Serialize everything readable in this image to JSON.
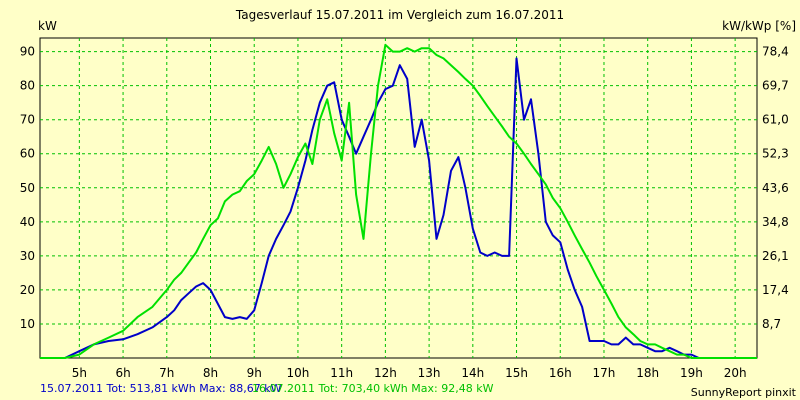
{
  "chart_data": {
    "type": "line",
    "title": "Tagesverlauf 15.07.2011 im Vergleich zum 16.07.2011",
    "ylabel_left": "kW",
    "ylabel_right": "kW/kWp [%]",
    "x_ticks": [
      "5h",
      "6h",
      "7h",
      "8h",
      "9h",
      "10h",
      "11h",
      "12h",
      "13h",
      "14h",
      "15h",
      "16h",
      "17h",
      "18h",
      "19h",
      "20h"
    ],
    "x_tick_values": [
      5,
      6,
      7,
      8,
      9,
      10,
      11,
      12,
      13,
      14,
      15,
      16,
      17,
      18,
      19,
      20
    ],
    "xlim": [
      4.1,
      20.5
    ],
    "ylim": [
      0,
      94
    ],
    "y_ticks_left": [
      10,
      20,
      30,
      40,
      50,
      60,
      70,
      80,
      90
    ],
    "y_ticks_right": [
      "8,7",
      "17,4",
      "26,1",
      "34,8",
      "43,6",
      "52,3",
      "61,0",
      "69,7",
      "78,4"
    ],
    "grid": true,
    "series": [
      {
        "name": "15.07.2011",
        "color": "#0000c8",
        "x": [
          4.1,
          4.67,
          5.0,
          5.33,
          5.67,
          6.0,
          6.33,
          6.67,
          7.0,
          7.17,
          7.33,
          7.5,
          7.67,
          7.83,
          8.0,
          8.33,
          8.5,
          8.67,
          8.83,
          9.0,
          9.17,
          9.33,
          9.5,
          9.67,
          9.83,
          10.0,
          10.17,
          10.33,
          10.5,
          10.67,
          10.83,
          11.0,
          11.17,
          11.33,
          11.5,
          11.67,
          11.83,
          12.0,
          12.17,
          12.33,
          12.5,
          12.67,
          12.83,
          13.0,
          13.17,
          13.33,
          13.5,
          13.67,
          13.83,
          14.0,
          14.17,
          14.33,
          14.5,
          14.67,
          14.83,
          15.0,
          15.17,
          15.33,
          15.5,
          15.67,
          15.83,
          16.0,
          16.17,
          16.33,
          16.5,
          16.67,
          16.83,
          17.0,
          17.17,
          17.33,
          17.5,
          17.67,
          17.83,
          18.0,
          18.17,
          18.33,
          18.5,
          18.67,
          18.83,
          19.0,
          19.17,
          19.33,
          19.5,
          19.67,
          19.83,
          20.0,
          20.17,
          20.33,
          20.5
        ],
        "y": [
          0,
          0,
          2,
          4,
          5,
          5.5,
          7,
          9,
          12,
          14,
          17,
          19,
          21,
          22,
          20,
          12,
          11.5,
          12,
          11.5,
          14,
          22,
          30,
          35,
          39,
          43,
          50,
          58,
          67,
          75,
          80,
          81,
          70,
          65,
          60,
          65,
          70,
          75,
          79,
          80,
          86,
          82,
          62,
          70,
          58,
          35,
          42,
          55,
          59,
          50,
          38,
          31,
          30,
          31,
          30,
          30,
          88,
          70,
          76,
          60,
          40,
          36,
          34,
          26,
          20,
          15,
          5,
          5,
          5,
          4,
          4,
          6,
          4,
          4,
          3,
          2,
          2,
          3,
          2,
          1,
          1,
          0,
          0,
          0,
          0,
          0,
          0,
          0,
          0,
          0
        ]
      },
      {
        "name": "16.07.2011",
        "color": "#00e000",
        "x": [
          4.1,
          4.67,
          5.0,
          5.33,
          5.67,
          6.0,
          6.33,
          6.67,
          7.0,
          7.17,
          7.33,
          7.5,
          7.67,
          7.83,
          8.0,
          8.17,
          8.33,
          8.5,
          8.67,
          8.83,
          9.0,
          9.17,
          9.33,
          9.5,
          9.67,
          9.83,
          10.0,
          10.17,
          10.33,
          10.5,
          10.67,
          10.83,
          11.0,
          11.17,
          11.33,
          11.5,
          11.67,
          11.83,
          12.0,
          12.17,
          12.33,
          12.5,
          12.67,
          12.83,
          13.0,
          13.17,
          13.33,
          13.5,
          13.67,
          13.83,
          14.0,
          14.17,
          14.33,
          14.5,
          14.67,
          14.83,
          15.0,
          15.17,
          15.33,
          15.5,
          15.67,
          15.83,
          16.0,
          16.17,
          16.33,
          16.5,
          16.67,
          16.83,
          17.0,
          17.17,
          17.33,
          17.5,
          17.67,
          17.83,
          18.0,
          18.17,
          18.33,
          18.5,
          18.67,
          18.83,
          19.0,
          19.17,
          19.33,
          19.5,
          19.67,
          19.83,
          20.0,
          20.17,
          20.33,
          20.5
        ],
        "y": [
          0,
          0,
          1,
          4,
          6,
          8,
          12,
          15,
          20,
          23,
          25,
          28,
          31,
          35,
          39,
          41,
          46,
          48,
          49,
          52,
          54,
          58,
          62,
          57,
          50,
          54,
          59,
          63,
          57,
          70,
          76,
          66,
          58,
          75,
          48,
          35,
          60,
          80,
          92,
          90,
          90,
          91,
          90,
          91,
          91,
          89,
          88,
          86,
          84,
          82,
          80,
          77,
          74,
          71,
          68,
          65,
          63,
          60,
          57,
          54,
          51,
          47,
          44,
          40,
          36,
          32,
          28,
          24,
          20,
          16,
          12,
          9,
          7,
          5,
          4,
          4,
          3,
          2,
          1,
          1,
          0,
          0,
          0,
          0,
          0,
          0,
          0,
          0,
          0,
          0
        ]
      }
    ],
    "footer": {
      "series1_summary": "15.07.2011 Tot: 513,81 kWh Max: 88,67 kW",
      "series2_summary": "16.07.2011 Tot: 703,40 kWh Max: 92,48 kW",
      "brand": "SunnyReport pinxit"
    }
  }
}
